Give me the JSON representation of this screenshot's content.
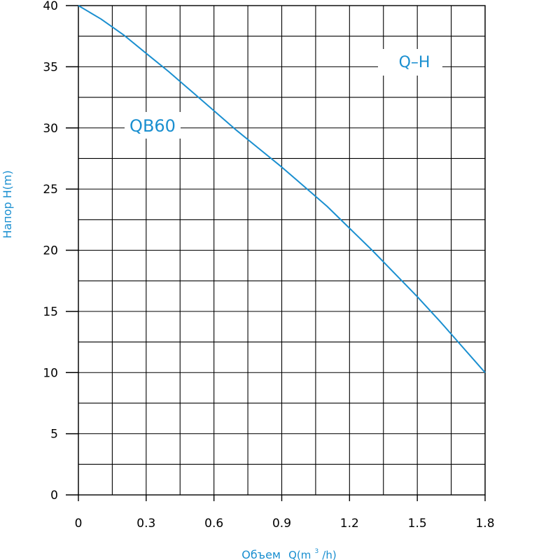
{
  "chart_data": {
    "type": "line",
    "xlabel_main": "Объем",
    "xlabel_unit_prefix": "Q(m",
    "xlabel_unit_sup": "3",
    "xlabel_unit_suffix": "/h)",
    "ylabel": "Напор H(m)",
    "curve_label": "Q–H",
    "series": [
      {
        "name": "QB60",
        "x": [
          0,
          0.1,
          0.2,
          0.3,
          0.4,
          0.5,
          0.6,
          0.7,
          0.8,
          0.9,
          1.0,
          1.1,
          1.2,
          1.3,
          1.4,
          1.5,
          1.6,
          1.7,
          1.8
        ],
        "y": [
          40,
          38.9,
          37.6,
          36.1,
          34.6,
          33.0,
          31.4,
          29.8,
          28.3,
          26.8,
          25.2,
          23.6,
          21.8,
          20.0,
          18.1,
          16.2,
          14.2,
          12.1,
          10
        ]
      }
    ],
    "x_ticks": [
      "0",
      "0.3",
      "0.6",
      "0.9",
      "1.2",
      "1.5",
      "1.8"
    ],
    "y_ticks": [
      "0",
      "5",
      "10",
      "15",
      "20",
      "25",
      "30",
      "35",
      "40"
    ],
    "xlim": [
      0,
      1.8
    ],
    "ylim": [
      0,
      40
    ],
    "grid": true,
    "colors": {
      "curve": "#1a8fd0",
      "grid": "#000000",
      "text": "#000000",
      "axis_title": "#1a8fd0"
    }
  }
}
